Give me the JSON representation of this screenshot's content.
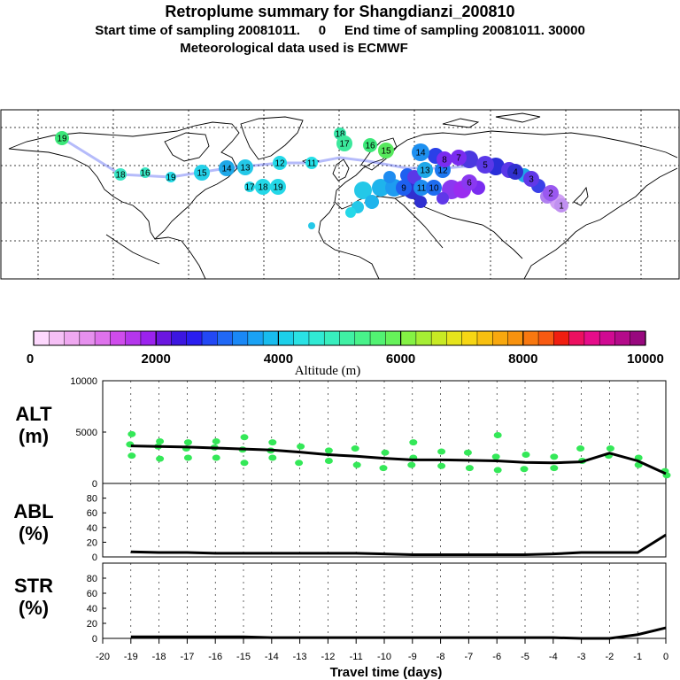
{
  "header": {
    "title": "Retroplume summary for Shangdianzi_200810",
    "line2": "Start time of sampling 20081011.     0     End time of sampling 20081011. 30000",
    "line3": "Meteorological data used is ECMWF"
  },
  "colorbar": {
    "ticks": [
      "0",
      "2000",
      "4000",
      "6000",
      "8000",
      "10000"
    ],
    "title": "Altitude (m)"
  },
  "panels": {
    "alt": {
      "label1": "ALT",
      "label2": "(m)"
    },
    "abl": {
      "label1": "ABL",
      "label2": "(%)"
    },
    "str": {
      "label1": "STR",
      "label2": "(%)"
    }
  },
  "xaxis": {
    "title": "Travel time (days)"
  },
  "map_labels": [
    {
      "t": "19",
      "c": "#3be879"
    },
    {
      "t": "18",
      "c": "#38e6c4"
    },
    {
      "t": "16",
      "c": "#38e6c4"
    },
    {
      "t": "19",
      "c": "#24dde8"
    },
    {
      "t": "15",
      "c": "#24d0e8"
    },
    {
      "t": "14",
      "c": "#1ea8e8"
    },
    {
      "t": "13",
      "c": "#24c8e8"
    },
    {
      "t": "12",
      "c": "#24d8e8"
    },
    {
      "t": "17",
      "c": "#24d8e8"
    },
    {
      "t": "18",
      "c": "#24d8e8"
    },
    {
      "t": "19",
      "c": "#24d8e8"
    },
    {
      "t": "11",
      "c": "#24e0e8"
    },
    {
      "t": "18",
      "c": "#38e6a8"
    },
    {
      "t": "17",
      "c": "#3be89c"
    },
    {
      "t": "16",
      "c": "#3be879"
    },
    {
      "t": "15",
      "c": "#56e85c"
    },
    {
      "t": "14",
      "c": "#1e90f0"
    },
    {
      "t": "13",
      "c": "#1ea8e8"
    },
    {
      "t": "12",
      "c": "#1e78f0"
    },
    {
      "t": "11",
      "c": "#1e8cf0"
    },
    {
      "t": "10",
      "c": "#1e6cf0"
    },
    {
      "t": "9",
      "c": "#1e60f0"
    },
    {
      "t": "8",
      "c": "#7a2cf0"
    },
    {
      "t": "7",
      "c": "#7a2cf0"
    },
    {
      "t": "6",
      "c": "#8a38f0"
    },
    {
      "t": "5",
      "c": "#5a38e8"
    },
    {
      "t": "4",
      "c": "#3030d0"
    },
    {
      "t": "3",
      "c": "#6038e8"
    },
    {
      "t": "2",
      "c": "#9a58f0"
    },
    {
      "t": "1",
      "c": "#c090f0"
    }
  ],
  "chart_data": [
    {
      "type": "line",
      "panel": "ALT",
      "ylabel": "ALT (m)",
      "ylim": [
        0,
        10000
      ],
      "yticks": [
        0,
        5000,
        10000
      ],
      "x": [
        0,
        -1,
        -2,
        -3,
        -4,
        -5,
        -6,
        -7,
        -8,
        -9,
        -10,
        -11,
        -12,
        -13,
        -14,
        -15,
        -16,
        -17,
        -18,
        -19
      ],
      "series": [
        {
          "name": "mean altitude",
          "values": [
            950,
            2200,
            2950,
            2100,
            2000,
            2050,
            2200,
            2250,
            2300,
            2300,
            2450,
            2650,
            2800,
            3050,
            3250,
            3350,
            3450,
            3550,
            3600,
            3650
          ]
        }
      ],
      "scatter": {
        "x": [
          -19,
          -19,
          -19,
          -18,
          -18,
          -18,
          -17,
          -17,
          -17,
          -16,
          -16,
          -16,
          -15,
          -15,
          -15,
          -14,
          -14,
          -14,
          -13,
          -13,
          -12,
          -12,
          -11,
          -11,
          -10,
          -10,
          -9,
          -9,
          -9,
          -8,
          -8,
          -7,
          -7,
          -6,
          -6,
          -6,
          -5,
          -5,
          -4,
          -4,
          -3,
          -3,
          -2,
          -2,
          -1,
          -1,
          0,
          0
        ],
        "y": [
          4800,
          3800,
          2700,
          4100,
          3600,
          2400,
          4000,
          3400,
          2500,
          4100,
          3500,
          2500,
          4500,
          3300,
          2000,
          4000,
          3200,
          2500,
          3600,
          2000,
          3200,
          2200,
          3400,
          1800,
          3000,
          1500,
          4000,
          2500,
          1800,
          3100,
          1700,
          3000,
          1500,
          4700,
          2600,
          1300,
          2800,
          1400,
          2600,
          1500,
          3400,
          2200,
          3400,
          2700,
          2500,
          1800,
          1200,
          800
        ]
      }
    },
    {
      "type": "line",
      "panel": "ABL",
      "ylabel": "ABL (%)",
      "ylim": [
        0,
        100
      ],
      "yticks": [
        0,
        20,
        40,
        60,
        80
      ],
      "x": [
        0,
        -1,
        -2,
        -3,
        -4,
        -5,
        -6,
        -7,
        -8,
        -9,
        -10,
        -11,
        -12,
        -13,
        -14,
        -15,
        -16,
        -17,
        -18,
        -19
      ],
      "series": [
        {
          "name": "ABL fraction",
          "values": [
            30,
            6,
            6,
            6,
            4,
            3,
            3,
            3,
            3,
            3,
            4,
            5,
            5,
            5,
            5,
            5,
            5,
            6,
            6,
            7
          ]
        }
      ]
    },
    {
      "type": "line",
      "panel": "STR",
      "ylabel": "STR (%)",
      "ylim": [
        0,
        100
      ],
      "yticks": [
        0,
        20,
        40,
        60,
        80
      ],
      "x": [
        0,
        -1,
        -2,
        -3,
        -4,
        -5,
        -6,
        -7,
        -8,
        -9,
        -10,
        -11,
        -12,
        -13,
        -14,
        -15,
        -16,
        -17,
        -18,
        -19
      ],
      "series": [
        {
          "name": "stratospheric fraction",
          "values": [
            14,
            5,
            0,
            0,
            1,
            1,
            1,
            1,
            1,
            1,
            1,
            1,
            1,
            1,
            1,
            2,
            2,
            2,
            2,
            2
          ]
        }
      ]
    }
  ],
  "xticks": [
    "-20",
    "-19",
    "-18",
    "-17",
    "-16",
    "-15",
    "-14",
    "-13",
    "-12",
    "-11",
    "-10",
    "-9",
    "-8",
    "-7",
    "-6",
    "-5",
    "-4",
    "-3",
    "-2",
    "-1",
    "0"
  ]
}
